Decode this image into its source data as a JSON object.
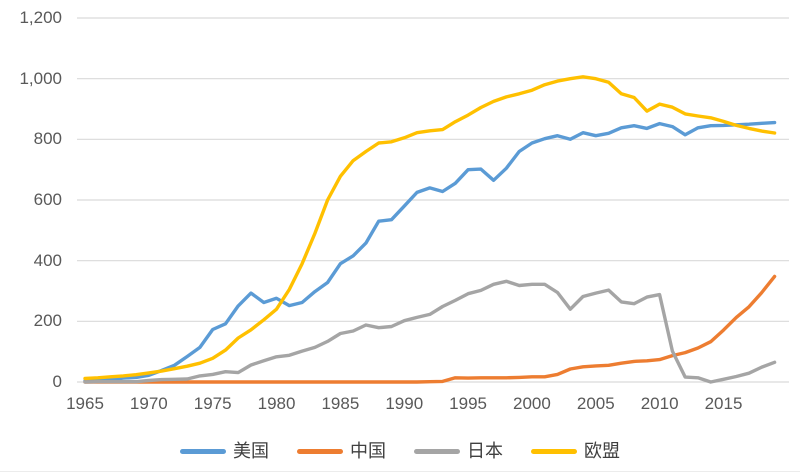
{
  "chart_data": {
    "type": "line",
    "title": "",
    "xlabel": "",
    "ylabel": "",
    "grid": true,
    "legend_position": "bottom",
    "ylim": [
      0,
      1200
    ],
    "ytick_step": 200,
    "ytick_labels": [
      "0",
      "200",
      "400",
      "600",
      "800",
      "1,000",
      "1,200"
    ],
    "xticks": [
      1965,
      1970,
      1975,
      1980,
      1985,
      1990,
      1995,
      2000,
      2005,
      2010,
      2015
    ],
    "xtick_labels": [
      "1965",
      "1970",
      "1975",
      "1980",
      "1985",
      "1990",
      "1995",
      "2000",
      "2005",
      "2010",
      "2015"
    ],
    "x_range": [
      1965,
      2019
    ],
    "x": [
      1965,
      1966,
      1967,
      1968,
      1969,
      1970,
      1971,
      1972,
      1973,
      1974,
      1975,
      1976,
      1977,
      1978,
      1979,
      1980,
      1981,
      1982,
      1983,
      1984,
      1985,
      1986,
      1987,
      1988,
      1989,
      1990,
      1991,
      1992,
      1993,
      1994,
      1995,
      1996,
      1997,
      1998,
      1999,
      2000,
      2001,
      2002,
      2003,
      2004,
      2005,
      2006,
      2007,
      2008,
      2009,
      2010,
      2011,
      2012,
      2013,
      2014,
      2015,
      2016,
      2017,
      2018,
      2019
    ],
    "series": [
      {
        "name": "美国",
        "color": "#5B9BD5",
        "values": [
          4,
          6,
          8,
          13,
          15,
          22,
          38,
          55,
          84,
          114,
          173,
          192,
          251,
          293,
          262,
          276,
          252,
          262,
          298,
          328,
          390,
          416,
          458,
          530,
          535,
          580,
          625,
          640,
          628,
          655,
          700,
          702,
          665,
          705,
          760,
          788,
          802,
          812,
          800,
          822,
          812,
          820,
          838,
          845,
          836,
          852,
          842,
          815,
          838,
          845,
          846,
          848,
          850,
          853,
          855
        ]
      },
      {
        "name": "中国",
        "color": "#ED7D31",
        "values": [
          0,
          0,
          0,
          0,
          0,
          0,
          0,
          0,
          0,
          0,
          0,
          0,
          0,
          0,
          0,
          0,
          0,
          0,
          0,
          0,
          0,
          0,
          0,
          0,
          0,
          0,
          0,
          1,
          2,
          14,
          13,
          14,
          14,
          14,
          15,
          17,
          17,
          25,
          43,
          50,
          53,
          55,
          62,
          68,
          70,
          74,
          87,
          97,
          112,
          133,
          171,
          213,
          248,
          295,
          348
        ]
      },
      {
        "name": "日本",
        "color": "#A5A5A5",
        "values": [
          0,
          1,
          1,
          1,
          1,
          5,
          8,
          9,
          10,
          20,
          25,
          34,
          31,
          56,
          70,
          83,
          88,
          102,
          114,
          134,
          160,
          168,
          188,
          179,
          183,
          202,
          213,
          223,
          249,
          269,
          291,
          302,
          322,
          332,
          318,
          322,
          322,
          295,
          240,
          282,
          293,
          303,
          264,
          258,
          280,
          288,
          102,
          16,
          14,
          0,
          9,
          18,
          29,
          49,
          65
        ]
      },
      {
        "name": "欧盟",
        "color": "#FFC000",
        "values": [
          12,
          14,
          17,
          20,
          24,
          30,
          36,
          44,
          52,
          62,
          78,
          105,
          145,
          172,
          205,
          240,
          305,
          390,
          490,
          600,
          678,
          730,
          760,
          788,
          792,
          805,
          822,
          828,
          832,
          858,
          880,
          905,
          925,
          940,
          950,
          962,
          980,
          992,
          1000,
          1006,
          1000,
          988,
          950,
          938,
          893,
          916,
          906,
          884,
          877,
          871,
          859,
          846,
          836,
          827,
          821
        ]
      }
    ],
    "gridline_color": "#D9D9D9",
    "axis_text_color": "#595959",
    "legend_text_color": "#404040",
    "background_color": "#FFFFFF"
  }
}
